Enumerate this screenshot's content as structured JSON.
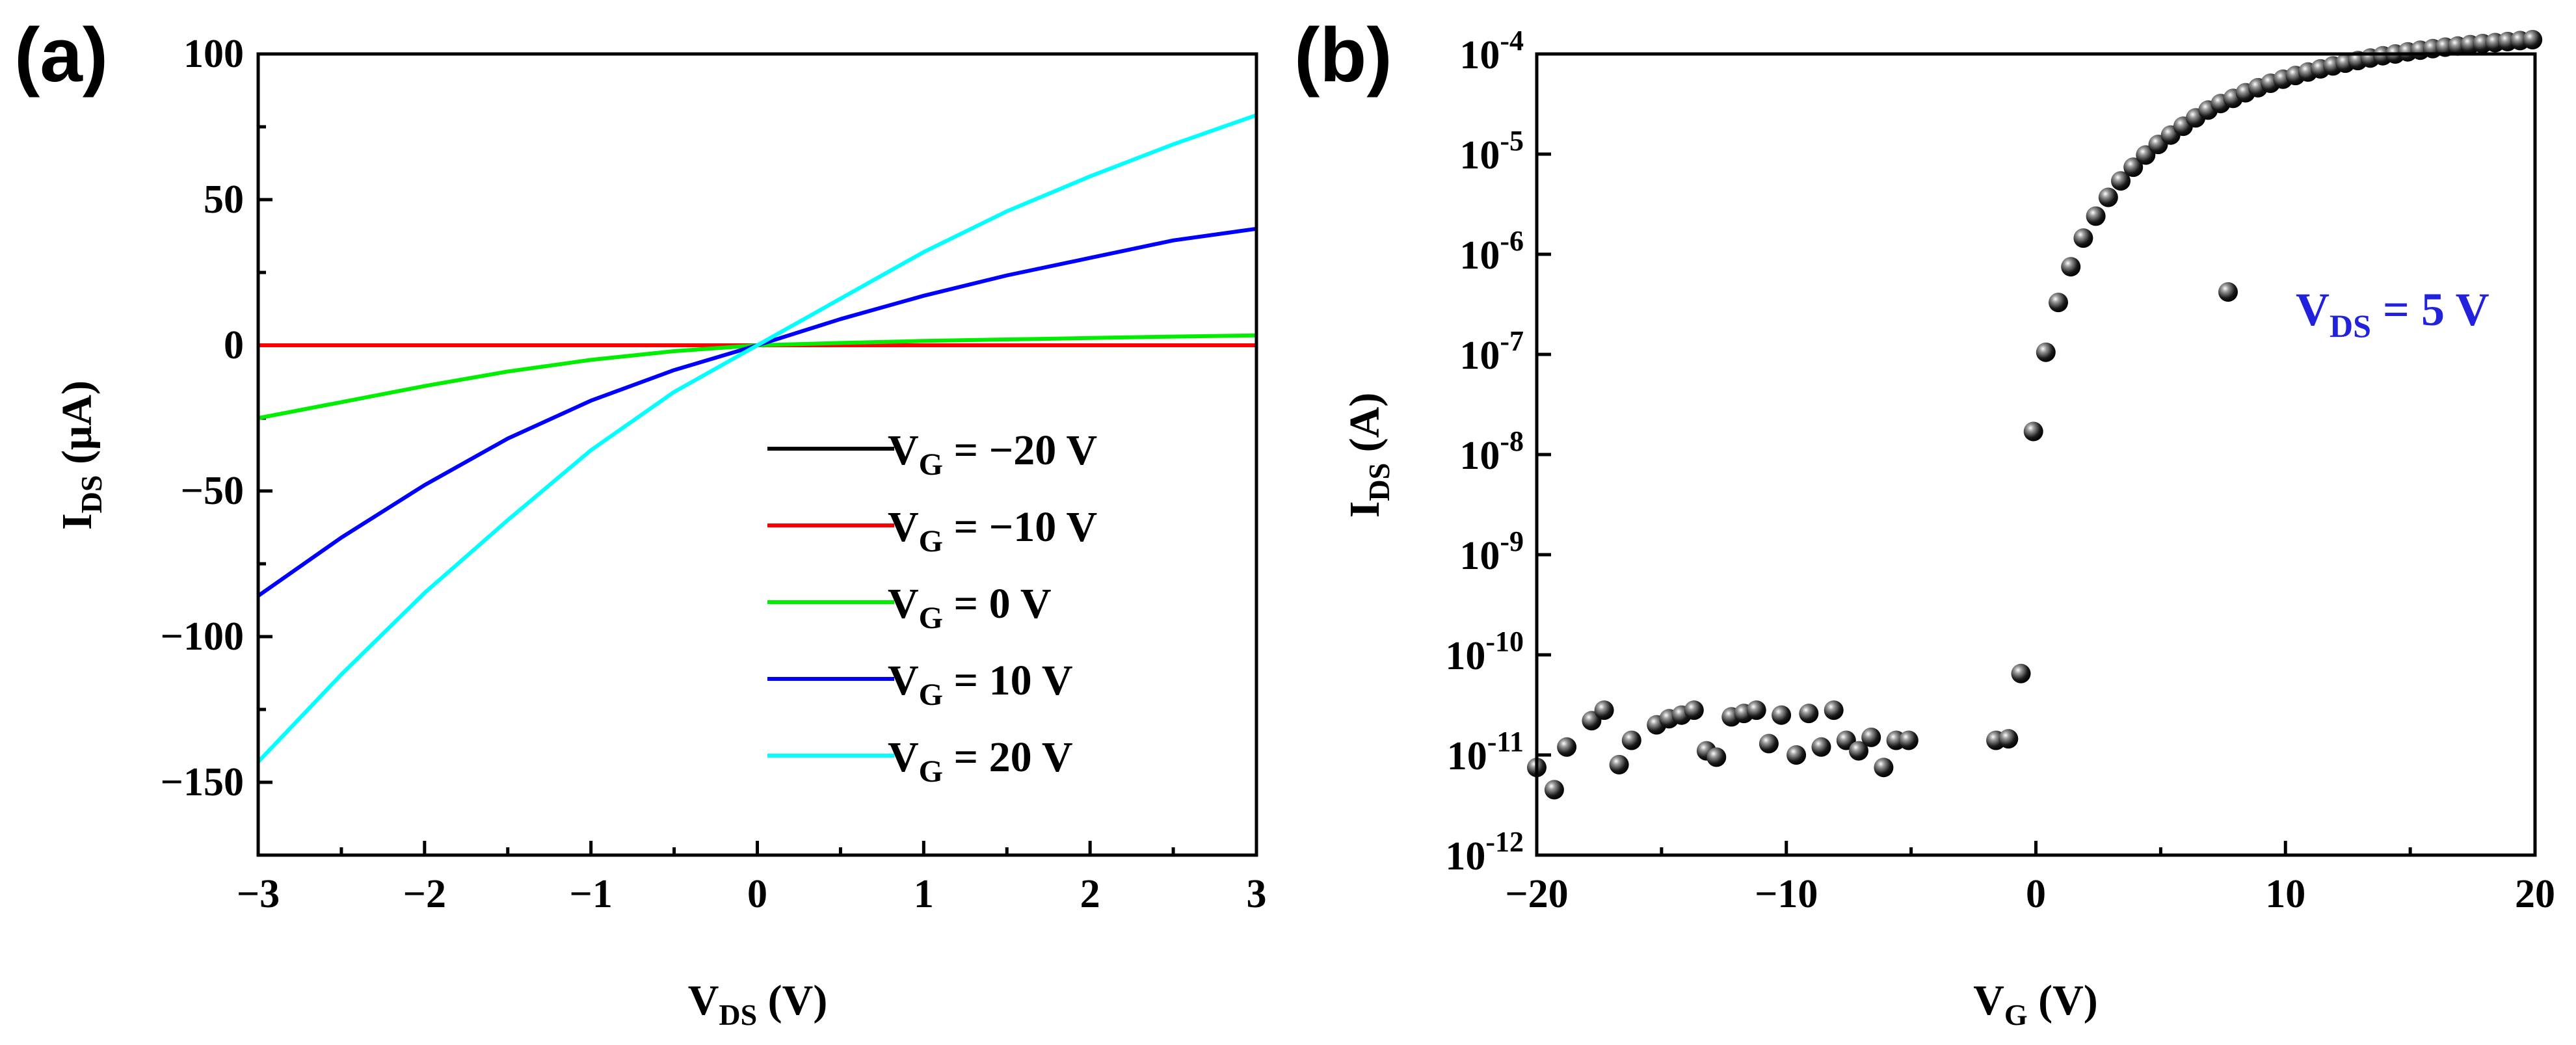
{
  "panel_labels": {
    "a": "(a)",
    "b": "(b)"
  },
  "chart_data": [
    {
      "type": "line",
      "panel": "(a)",
      "xlabel": {
        "main": "V",
        "sub": "DS",
        "unit": " (V)"
      },
      "ylabel": {
        "main": "I",
        "sub": "DS",
        "unit": " (μA)"
      },
      "xlim": [
        -3,
        3
      ],
      "ylim": [
        -175,
        100
      ],
      "xticks": [
        -3,
        -2,
        -1,
        0,
        1,
        2,
        3
      ],
      "xtick_labels": [
        "−3",
        "−2",
        "−1",
        "0",
        "1",
        "2",
        "3"
      ],
      "yticks": [
        100,
        50,
        0,
        -50,
        -100,
        -150
      ],
      "ytick_labels": [
        "100",
        "50",
        "0",
        "−50",
        "−100",
        "−150"
      ],
      "legend_position": "bottom-right",
      "x": [
        -3,
        -2.5,
        -2,
        -1.5,
        -1,
        -0.5,
        0,
        0.5,
        1,
        1.5,
        2,
        2.5,
        3
      ],
      "series": [
        {
          "name": "V_G = −20 V",
          "label_main": "V",
          "label_sub": "G",
          "label_rest": " = −20 V",
          "color": "#000000",
          "values": [
            0,
            0,
            0,
            0,
            0,
            0,
            0,
            0,
            0,
            0,
            0,
            0,
            0
          ]
        },
        {
          "name": "V_G = −10 V",
          "label_main": "V",
          "label_sub": "G",
          "label_rest": " = −10 V",
          "color": "#ff0000",
          "values": [
            0,
            0,
            0,
            0,
            0,
            0,
            0,
            0,
            0,
            0,
            0,
            0,
            0
          ]
        },
        {
          "name": "V_G = 0 V",
          "label_main": "V",
          "label_sub": "G",
          "label_rest": " = 0 V",
          "color": "#00ee00",
          "values": [
            -25,
            -19.5,
            -14,
            -9,
            -5,
            -2,
            0,
            0.8,
            1.5,
            2,
            2.5,
            3,
            3.4
          ]
        },
        {
          "name": "V_G = 10 V",
          "label_main": "V",
          "label_sub": "G",
          "label_rest": " = 10 V",
          "color": "#0000ff",
          "values": [
            -86,
            -66,
            -48,
            -32,
            -19,
            -8.5,
            0,
            9,
            17,
            24,
            30,
            36,
            40
          ]
        },
        {
          "name": "V_G = 20 V",
          "label_main": "V",
          "label_sub": "G",
          "label_rest": " = 20 V",
          "color": "#00ffff",
          "values": [
            -143,
            -113,
            -85,
            -60,
            -36,
            -16,
            0,
            16,
            32,
            46,
            58,
            69,
            79
          ]
        }
      ]
    },
    {
      "type": "scatter",
      "panel": "(b)",
      "scale_y": "log",
      "xlabel": {
        "main": "V",
        "sub": "G",
        "unit": " (V)"
      },
      "ylabel": {
        "main": "I",
        "sub": "DS",
        "unit": " (A)"
      },
      "xlim": [
        -20,
        20
      ],
      "ylim_exp": [
        -12,
        -4
      ],
      "xticks": [
        -20,
        -10,
        0,
        10,
        20
      ],
      "xtick_labels": [
        "−20",
        "−10",
        "0",
        "10",
        "20"
      ],
      "ytick_exponents": [
        -4,
        -5,
        -6,
        -7,
        -8,
        -9,
        -10,
        -11,
        -12
      ],
      "ytick_base": "10",
      "ytick_exp_labels": [
        "-4",
        "-5",
        "-6",
        "-7",
        "-8",
        "-9",
        "-10",
        "-11",
        "-12"
      ],
      "annotation": {
        "main": "V",
        "sub": "DS",
        "rest": " = 5 V",
        "color": "#2222dd"
      },
      "points": [
        [
          -20,
          7.5e-12
        ],
        [
          -19.3,
          4.5e-12
        ],
        [
          -18.8,
          1.2e-11
        ],
        [
          -17.8,
          2.2e-11
        ],
        [
          -17.3,
          2.8e-11
        ],
        [
          -16.7,
          8e-12
        ],
        [
          -16.2,
          1.4e-11
        ],
        [
          -15.2,
          2e-11
        ],
        [
          -14.7,
          2.3e-11
        ],
        [
          -14.2,
          2.5e-11
        ],
        [
          -13.7,
          2.8e-11
        ],
        [
          -13.2,
          1.1e-11
        ],
        [
          -12.8,
          9.5e-12
        ],
        [
          -12.2,
          2.4e-11
        ],
        [
          -11.7,
          2.6e-11
        ],
        [
          -11.2,
          2.8e-11
        ],
        [
          -10.7,
          1.3e-11
        ],
        [
          -10.2,
          2.5e-11
        ],
        [
          -9.6,
          1e-11
        ],
        [
          -9.1,
          2.6e-11
        ],
        [
          -8.6,
          1.2e-11
        ],
        [
          -8.1,
          2.8e-11
        ],
        [
          -7.6,
          1.4e-11
        ],
        [
          -7.1,
          1.1e-11
        ],
        [
          -6.6,
          1.5e-11
        ],
        [
          -6.1,
          7.5e-12
        ],
        [
          -5.6,
          1.4e-11
        ],
        [
          -5.1,
          1.4e-11
        ],
        [
          -1.6,
          1.4e-11
        ],
        [
          -1.1,
          1.45e-11
        ],
        [
          -0.6,
          6.5e-11
        ],
        [
          -0.1,
          1.7e-08
        ],
        [
          0.4,
          1.05e-07
        ],
        [
          0.9,
          3.3e-07
        ],
        [
          1.4,
          7.5e-07
        ],
        [
          1.9,
          1.45e-06
        ],
        [
          2.4,
          2.4e-06
        ],
        [
          2.9,
          3.7e-06
        ],
        [
          3.4,
          5.4e-06
        ],
        [
          3.9,
          7.4e-06
        ],
        [
          4.4,
          9.8e-06
        ],
        [
          4.9,
          1.25e-05
        ],
        [
          5.4,
          1.55e-05
        ],
        [
          5.9,
          1.9e-05
        ],
        [
          6.4,
          2.3e-05
        ],
        [
          6.9,
          2.75e-05
        ],
        [
          7.4,
          3.2e-05
        ],
        [
          7.7,
          4.2e-07
        ],
        [
          7.9,
          3.6e-05
        ],
        [
          8.4,
          4.1e-05
        ],
        [
          8.9,
          4.6e-05
        ],
        [
          9.4,
          5.1e-05
        ],
        [
          9.9,
          5.6e-05
        ],
        [
          10.4,
          6.1e-05
        ],
        [
          10.9,
          6.6e-05
        ],
        [
          11.4,
          7.1e-05
        ],
        [
          11.9,
          7.6e-05
        ],
        [
          12.4,
          8.1e-05
        ],
        [
          12.9,
          8.6e-05
        ],
        [
          13.4,
          9.1e-05
        ],
        [
          13.9,
          9.6e-05
        ],
        [
          14.4,
          0.0001
        ],
        [
          14.9,
          0.000105
        ],
        [
          15.4,
          0.000109
        ],
        [
          15.9,
          0.000113
        ],
        [
          16.4,
          0.000117
        ],
        [
          16.9,
          0.00012
        ],
        [
          17.4,
          0.000124
        ],
        [
          17.9,
          0.000127
        ],
        [
          18.4,
          0.00013
        ],
        [
          18.9,
          0.000133
        ],
        [
          19.4,
          0.000136
        ],
        [
          19.9,
          0.000139
        ]
      ]
    }
  ]
}
